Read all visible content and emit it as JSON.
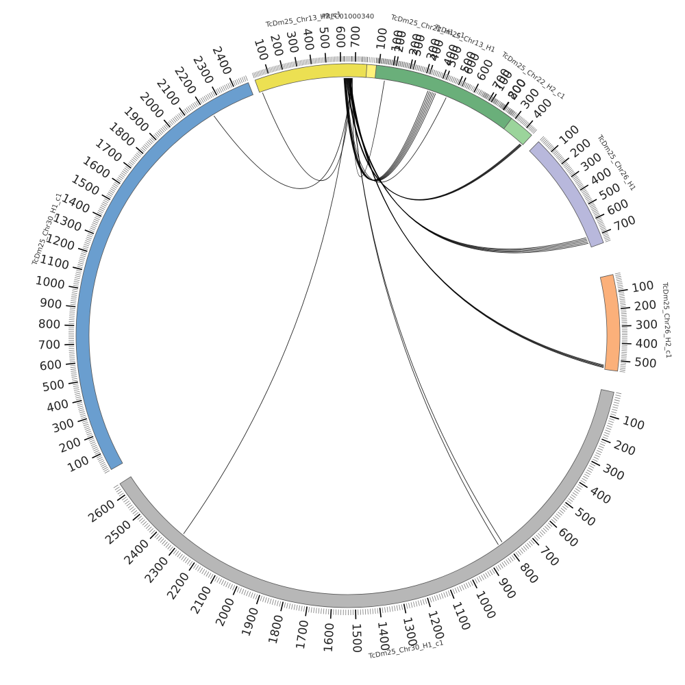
{
  "segments": [
    {
      "id": "PRFC01000340",
      "label": "PRFC01000340",
      "length": 40,
      "color": "#9ecae1",
      "major_step": 100
    },
    {
      "id": "chr22_h1",
      "label": "TcDm25_Chr22_H1_c1",
      "length": 640,
      "color": "#fff27a",
      "major_step": 100
    },
    {
      "id": "chr22_h2",
      "label": "TcDm25_Chr22_H2_c1",
      "length": 460,
      "color": "#9bd49b",
      "major_step": 100
    },
    {
      "id": "chr26_h1",
      "label": "TcDm25_Chr26_H1",
      "length": 760,
      "color": "#b8b8dc",
      "major_step": 100
    },
    {
      "id": "chr26_h2",
      "label": "TcDm25_Chr26_H2_c1",
      "length": 560,
      "color": "#fbb07a",
      "major_step": 100
    },
    {
      "id": "chr30_h1",
      "label": "TcDm25_Chr30_H1_c1",
      "length": 2650,
      "color": "#b7b7b7",
      "major_step": 100
    },
    {
      "id": "chr30",
      "label": "TcDm25_Chr30_H1_c1",
      "length": 2480,
      "color": "#6a9ecf",
      "major_step": 100
    },
    {
      "id": "chr13_h2",
      "label": "TcDm25_Chr13_H2_c1",
      "length": 780,
      "color": "#ece052",
      "major_step": 100
    },
    {
      "id": "chr13_h1",
      "label": "TcDm25_Chr13_H1",
      "length": 870,
      "color": "#6aaf7a",
      "major_step": 100
    }
  ],
  "links": [
    {
      "from": "PRFC01000340",
      "from_pos": 8,
      "to": "chr22_h1",
      "to_pos": 420,
      "color": "#1f77b4"
    },
    {
      "from": "PRFC01000340",
      "from_pos": 9,
      "to": "chr22_h1",
      "to_pos": 430,
      "color": "#1f77b4"
    },
    {
      "from": "PRFC01000340",
      "from_pos": 10,
      "to": "chr22_h1",
      "to_pos": 440,
      "color": "#1f77b4"
    },
    {
      "from": "PRFC01000340",
      "from_pos": 11,
      "to": "chr22_h1",
      "to_pos": 450,
      "color": "#1f77b4"
    },
    {
      "from": "PRFC01000340",
      "from_pos": 12,
      "to": "chr22_h1",
      "to_pos": 460,
      "color": "#1f77b4"
    },
    {
      "from": "PRFC01000340",
      "from_pos": 13,
      "to": "chr22_h1",
      "to_pos": 470,
      "color": "#1f77b4"
    },
    {
      "from": "PRFC01000340",
      "from_pos": 14,
      "to": "chr22_h1",
      "to_pos": 540,
      "color": "#333333"
    },
    {
      "from": "PRFC01000340",
      "from_pos": 15,
      "to": "chr22_h2",
      "to_pos": 440,
      "color": "#d4c32a"
    },
    {
      "from": "PRFC01000340",
      "from_pos": 16,
      "to": "chr22_h2",
      "to_pos": 445,
      "color": "#d4c32a"
    },
    {
      "from": "PRFC01000340",
      "from_pos": 17,
      "to": "chr22_h2",
      "to_pos": 450,
      "color": "#333333"
    },
    {
      "from": "PRFC01000340",
      "from_pos": 18,
      "to": "chr22_h2",
      "to_pos": 455,
      "color": "#333333"
    },
    {
      "from": "PRFC01000340",
      "from_pos": 19,
      "to": "chr26_h1",
      "to_pos": 690,
      "color": "#2a6f4a"
    },
    {
      "from": "PRFC01000340",
      "from_pos": 20,
      "to": "chr26_h1",
      "to_pos": 700,
      "color": "#333333"
    },
    {
      "from": "PRFC01000340",
      "from_pos": 21,
      "to": "chr26_h1",
      "to_pos": 710,
      "color": "#2a6f4a"
    },
    {
      "from": "PRFC01000340",
      "from_pos": 22,
      "to": "chr26_h1",
      "to_pos": 720,
      "color": "#333333"
    },
    {
      "from": "PRFC01000340",
      "from_pos": 23,
      "to": "chr26_h1",
      "to_pos": 730,
      "color": "#2a6f4a"
    },
    {
      "from": "PRFC01000340",
      "from_pos": 24,
      "to": "chr26_h2",
      "to_pos": 535,
      "color": "#333333"
    },
    {
      "from": "PRFC01000340",
      "from_pos": 25,
      "to": "chr26_h2",
      "to_pos": 540,
      "color": "#1f5a8a"
    },
    {
      "from": "PRFC01000340",
      "from_pos": 26,
      "to": "chr26_h2",
      "to_pos": 545,
      "color": "#333333"
    },
    {
      "from": "PRFC01000340",
      "from_pos": 27,
      "to": "chr26_h2",
      "to_pos": 550,
      "color": "#1f5a8a"
    },
    {
      "from": "PRFC01000340",
      "from_pos": 28,
      "to": "chr30_h1",
      "to_pos": 810,
      "color": "#7a3b1a"
    },
    {
      "from": "PRFC01000340",
      "from_pos": 29,
      "to": "chr30_h1",
      "to_pos": 830,
      "color": "#333333"
    },
    {
      "from": "PRFC01000340",
      "from_pos": 30,
      "to": "chr30_h1",
      "to_pos": 2310,
      "color": "#333333"
    },
    {
      "from": "PRFC01000340",
      "from_pos": 31,
      "to": "chr30",
      "to_pos": 2230,
      "color": "#333333"
    },
    {
      "from": "PRFC01000340",
      "from_pos": 32,
      "to": "chr13_h2",
      "to_pos": 20,
      "color": "#333333"
    },
    {
      "from": "PRFC01000340",
      "from_pos": 33,
      "to": "chr13_h1",
      "to_pos": 60,
      "color": "#333333"
    }
  ]
}
